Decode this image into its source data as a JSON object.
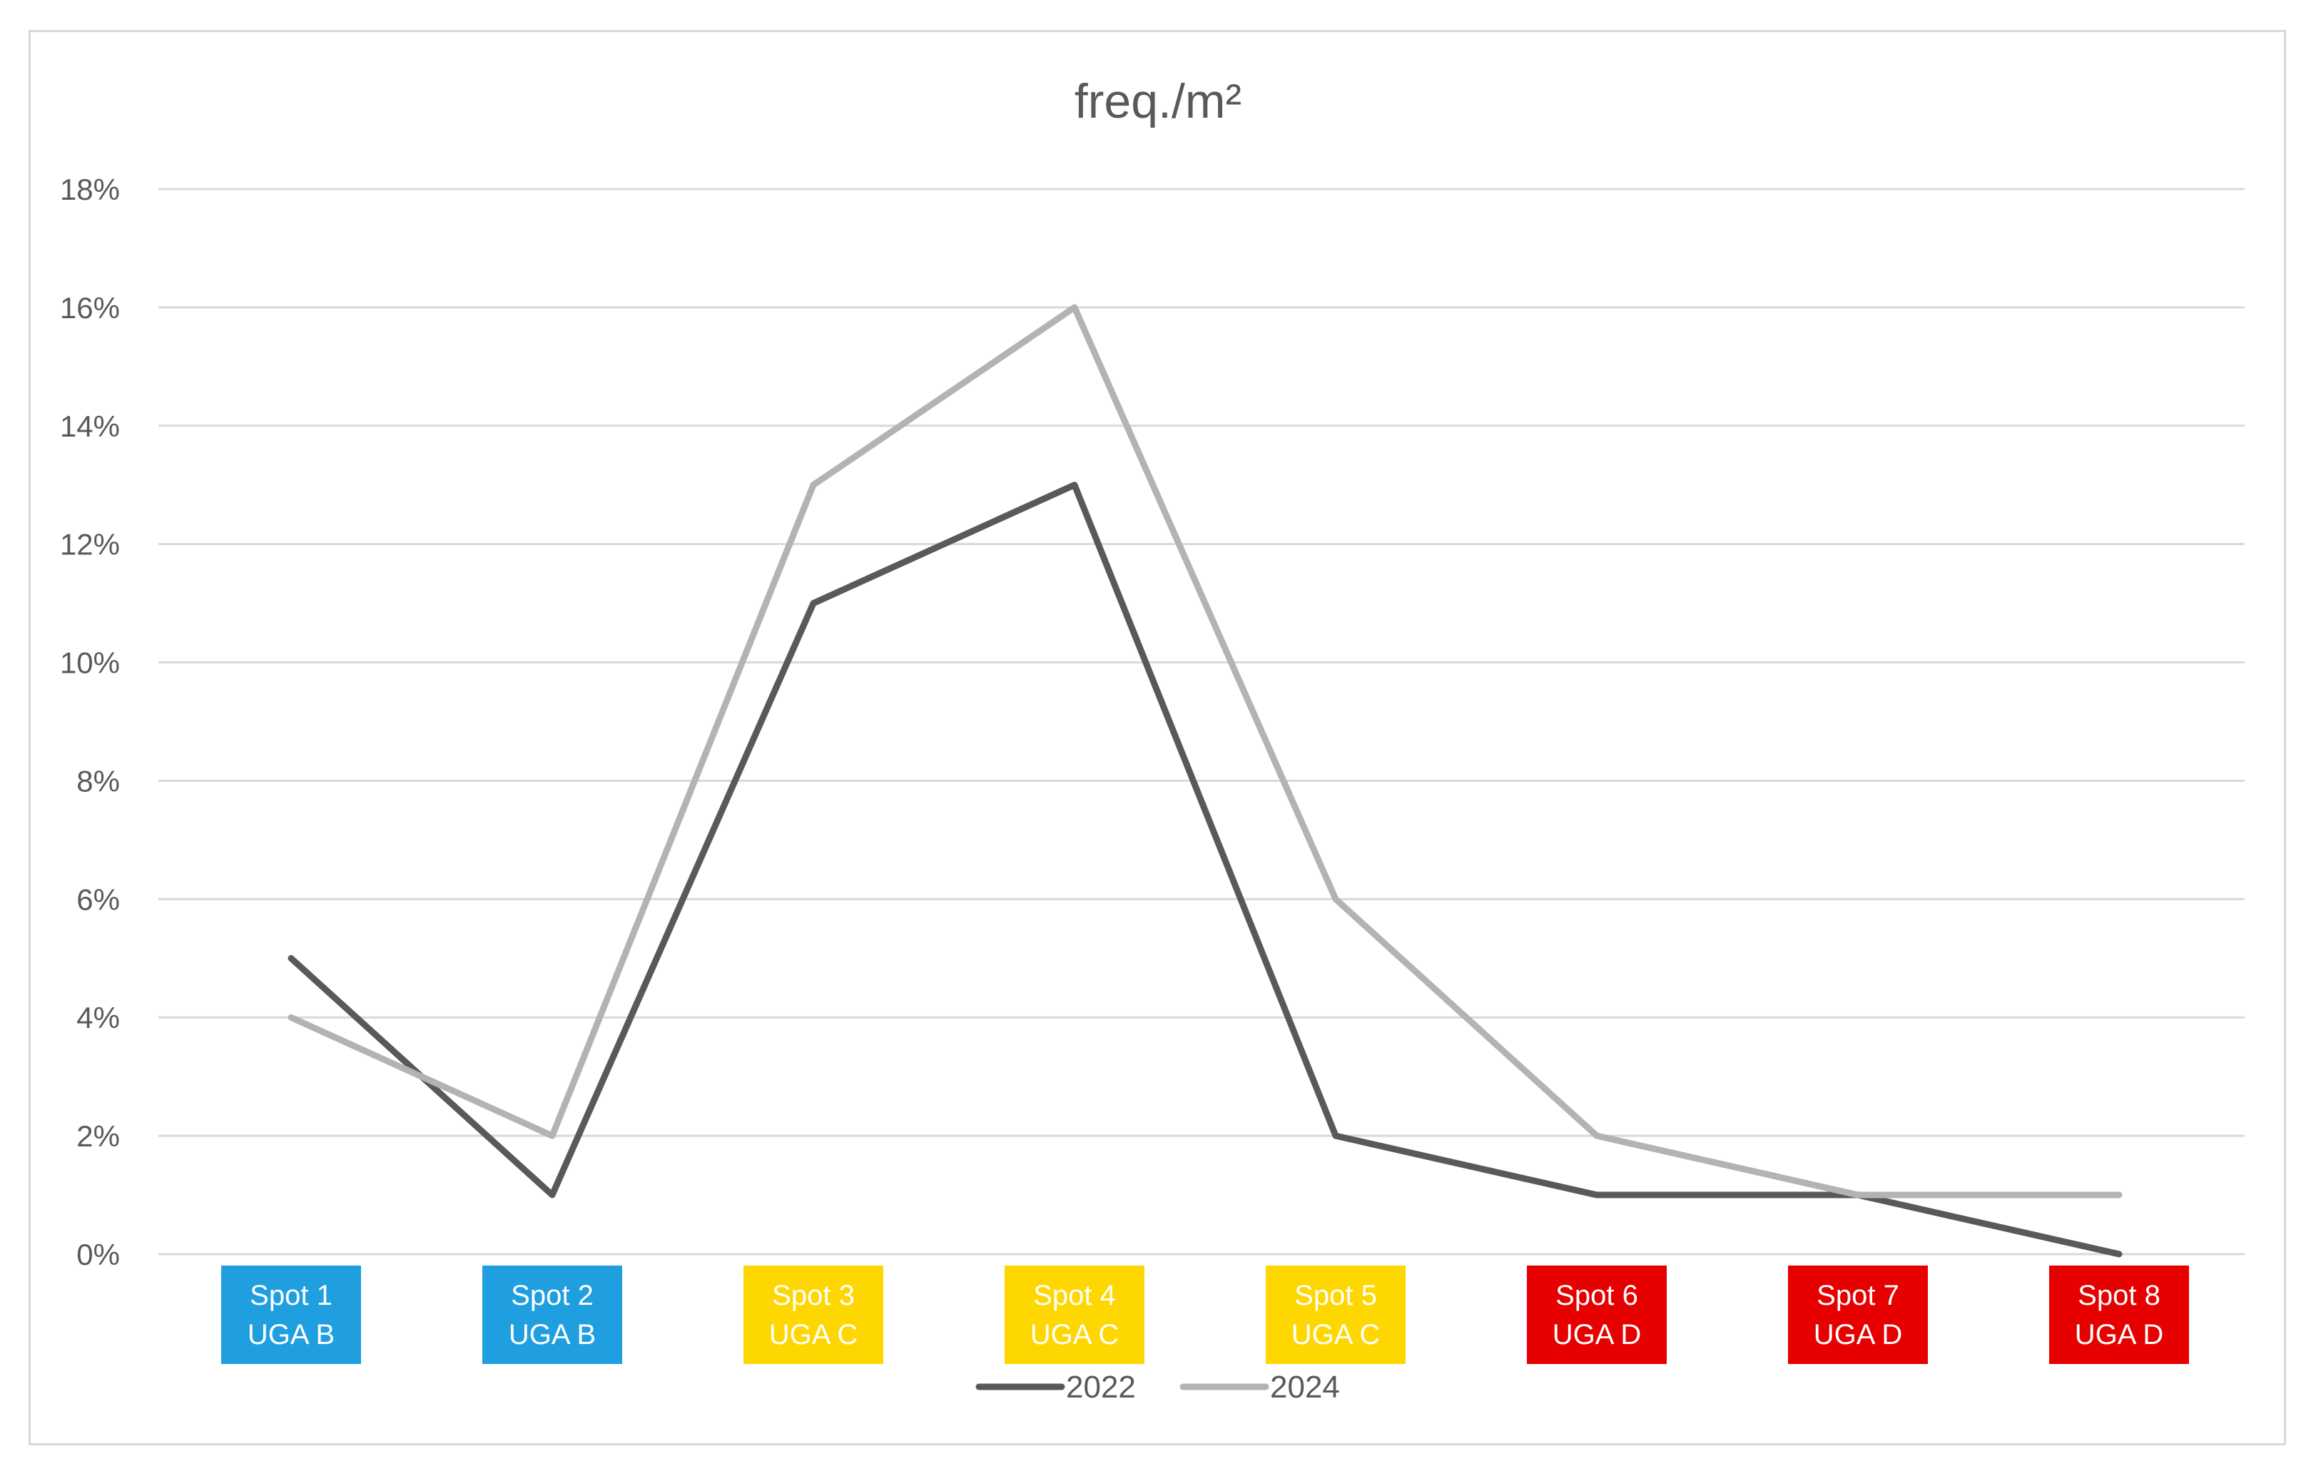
{
  "chart_data": {
    "type": "line",
    "title": "freq./m²",
    "xlabel": "",
    "ylabel": "",
    "ylim": [
      0,
      18
    ],
    "ytick_labels": [
      "0%",
      "2%",
      "4%",
      "6%",
      "8%",
      "10%",
      "12%",
      "14%",
      "16%",
      "18%"
    ],
    "ytick_values": [
      0,
      2,
      4,
      6,
      8,
      10,
      12,
      14,
      16,
      18
    ],
    "grid": true,
    "legend_position": "bottom",
    "categories": [
      {
        "line1": "Spot 1",
        "line2": "UGA B",
        "color": "#1f9fe0"
      },
      {
        "line1": "Spot 2",
        "line2": "UGA B",
        "color": "#1f9fe0"
      },
      {
        "line1": "Spot 3",
        "line2": "UGA C",
        "color": "#ffd700"
      },
      {
        "line1": "Spot 4",
        "line2": "UGA C",
        "color": "#ffd700"
      },
      {
        "line1": "Spot 5",
        "line2": "UGA C",
        "color": "#ffd700"
      },
      {
        "line1": "Spot 6",
        "line2": "UGA D",
        "color": "#e60000"
      },
      {
        "line1": "Spot 7",
        "line2": "UGA D",
        "color": "#e60000"
      },
      {
        "line1": "Spot 8",
        "line2": "UGA D",
        "color": "#e60000"
      }
    ],
    "series": [
      {
        "name": "2022",
        "color": "#595959",
        "values": [
          5,
          1,
          11,
          13,
          2,
          1,
          1,
          0
        ]
      },
      {
        "name": "2024",
        "color": "#b3b3b3",
        "values": [
          4,
          2,
          13,
          16,
          6,
          2,
          1,
          1
        ]
      }
    ]
  }
}
